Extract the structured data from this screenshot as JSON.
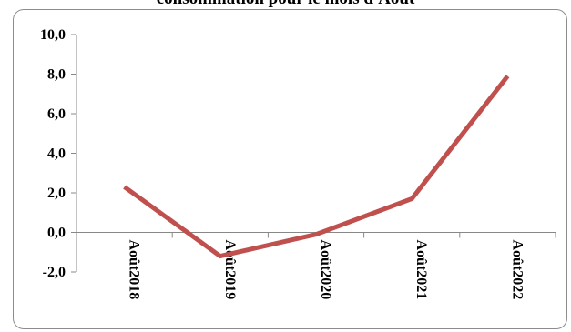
{
  "chart_data": {
    "type": "line",
    "title": "consommation pour le mois d'Août",
    "categories": [
      "Août2018",
      "Août2019",
      "Août2020",
      "Août2021",
      "Août2022"
    ],
    "series": [
      {
        "values": [
          2.3,
          -1.2,
          -0.1,
          1.7,
          7.9
        ],
        "color": "#c0504d"
      }
    ],
    "ylim": [
      -2.0,
      10.0
    ],
    "yticks": [
      "-2,0",
      "0,0",
      "2,0",
      "4,0",
      "6,0",
      "8,0",
      "10,0"
    ],
    "xlabel": "",
    "ylabel": "",
    "grid": false,
    "legend": "none"
  }
}
